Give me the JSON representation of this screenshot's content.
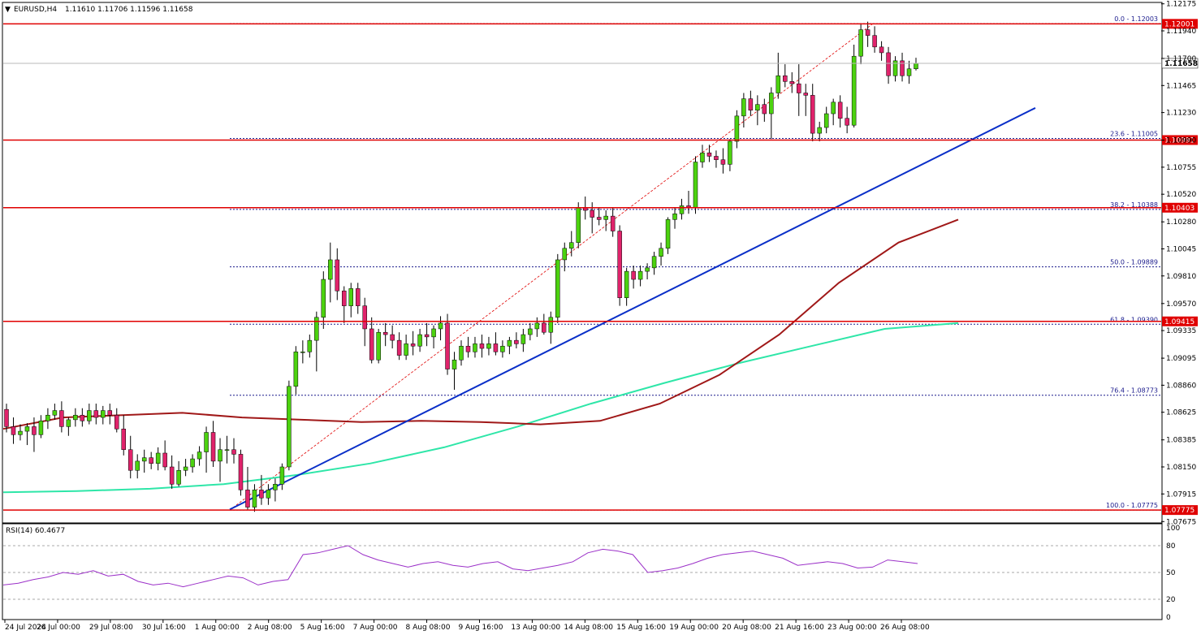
{
  "header": {
    "symbol": "EURUSD,H4",
    "ohlc": "1.11610 1.11706 1.11596 1.11658"
  },
  "rsi_panel": {
    "label": "RSI(14) 60.4677",
    "levels": [
      "100",
      "80",
      "50",
      "20",
      "0"
    ]
  },
  "current_price": "1.11658",
  "hlines": [
    {
      "price": 1.12001,
      "label": "1.12001"
    },
    {
      "price": 1.10991,
      "label": "1.10991"
    },
    {
      "price": 1.10403,
      "label": "1.10403"
    },
    {
      "price": 1.09415,
      "label": "1.09415"
    },
    {
      "price": 1.07775,
      "label": "1.07775"
    }
  ],
  "fib_levels": [
    {
      "price": 1.12003,
      "label": "0.0 - 1.12003"
    },
    {
      "price": 1.11005,
      "label": "23.6 - 1.11005"
    },
    {
      "price": 1.10388,
      "label": "38.2 - 1.10388"
    },
    {
      "price": 1.09889,
      "label": "50.0 - 1.09889"
    },
    {
      "price": 1.0939,
      "label": "61.8 - 1.09390"
    },
    {
      "price": 1.08773,
      "label": "76.4 - 1.08773"
    },
    {
      "price": 1.07775,
      "label": "100.0 - 1.07775"
    }
  ],
  "colors": {
    "bull": "#4cd20f",
    "bear": "#e0236b",
    "wick": "#000000",
    "hline": "#e00000",
    "trendline": "#0a2fc8",
    "ma_slow": "#2ee6a8",
    "ma_mid": "#a01818",
    "rsi": "#9b30c8",
    "fib": "#1a1a8c"
  },
  "chart_data": {
    "type": "candlestick",
    "ylim": [
      1.0767,
      1.1218
    ],
    "y_ticks": [
      "1.12175",
      "1.11940",
      "1.11700",
      "1.11465",
      "1.11230",
      "1.10990",
      "1.10755",
      "1.10520",
      "1.10280",
      "1.10045",
      "1.09810",
      "1.09570",
      "1.09335",
      "1.09095",
      "1.08860",
      "1.08625",
      "1.08385",
      "1.08150",
      "1.07915",
      "1.07675"
    ],
    "x_ticks": [
      "24 Jul 2024",
      "26 Jul 00:00",
      "29 Jul 08:00",
      "30 Jul 16:00",
      "1 Aug 00:00",
      "2 Aug 08:00",
      "5 Aug 16:00",
      "7 Aug 00:00",
      "8 Aug 08:00",
      "9 Aug 16:00",
      "13 Aug 00:00",
      "14 Aug 08:00",
      "15 Aug 16:00",
      "19 Aug 00:00",
      "20 Aug 08:00",
      "21 Aug 16:00",
      "23 Aug 00:00",
      "26 Aug 08:00"
    ],
    "candles_ohlc": [
      [
        1.0865,
        1.087,
        1.0845,
        1.085
      ],
      [
        1.085,
        1.0858,
        1.0835,
        1.0843
      ],
      [
        1.0843,
        1.0852,
        1.0838,
        1.0846
      ],
      [
        1.0846,
        1.0853,
        1.0834,
        1.085
      ],
      [
        1.085,
        1.0858,
        1.0828,
        1.0843
      ],
      [
        1.0843,
        1.086,
        1.084,
        1.0855
      ],
      [
        1.0855,
        1.0866,
        1.0848,
        1.086
      ],
      [
        1.086,
        1.087,
        1.0856,
        1.0864
      ],
      [
        1.0864,
        1.0872,
        1.0845,
        1.085
      ],
      [
        1.085,
        1.0858,
        1.0842,
        1.0856
      ],
      [
        1.0856,
        1.0866,
        1.085,
        1.086
      ],
      [
        1.086,
        1.0866,
        1.085,
        1.0855
      ],
      [
        1.0855,
        1.087,
        1.0852,
        1.0864
      ],
      [
        1.0864,
        1.087,
        1.0852,
        1.0858
      ],
      [
        1.0858,
        1.0868,
        1.0852,
        1.0864
      ],
      [
        1.0864,
        1.087,
        1.0852,
        1.086
      ],
      [
        1.086,
        1.0866,
        1.0845,
        1.0848
      ],
      [
        1.0848,
        1.086,
        1.0825,
        1.083
      ],
      [
        1.083,
        1.0842,
        1.0805,
        1.0812
      ],
      [
        1.0812,
        1.0826,
        1.0805,
        1.082
      ],
      [
        1.082,
        1.083,
        1.081,
        1.0823
      ],
      [
        1.0823,
        1.0828,
        1.0813,
        1.0818
      ],
      [
        1.0818,
        1.0832,
        1.0812,
        1.0827
      ],
      [
        1.0827,
        1.0838,
        1.0812,
        1.0815
      ],
      [
        1.0815,
        1.0825,
        1.0796,
        1.08
      ],
      [
        1.08,
        1.082,
        1.0798,
        1.0812
      ],
      [
        1.0812,
        1.0822,
        1.0807,
        1.0815
      ],
      [
        1.0815,
        1.0826,
        1.081,
        1.0822
      ],
      [
        1.0822,
        1.0833,
        1.0816,
        1.0828
      ],
      [
        1.0828,
        1.085,
        1.081,
        1.0845
      ],
      [
        1.0845,
        1.0855,
        1.0815,
        1.082
      ],
      [
        1.082,
        1.084,
        1.0802,
        1.083
      ],
      [
        1.083,
        1.0842,
        1.0818,
        1.083
      ],
      [
        1.083,
        1.084,
        1.0818,
        1.0826
      ],
      [
        1.0826,
        1.083,
        1.079,
        1.0795
      ],
      [
        1.0795,
        1.0815,
        1.0778,
        1.078
      ],
      [
        1.078,
        1.08,
        1.0776,
        1.0795
      ],
      [
        1.0795,
        1.0808,
        1.0782,
        1.0788
      ],
      [
        1.0788,
        1.08,
        1.0782,
        1.0795
      ],
      [
        1.0795,
        1.0805,
        1.0785,
        1.08
      ],
      [
        1.08,
        1.0818,
        1.0795,
        1.0815
      ],
      [
        1.0815,
        1.089,
        1.0812,
        1.0885
      ],
      [
        1.0885,
        1.092,
        1.0878,
        1.0915
      ],
      [
        1.0915,
        1.0925,
        1.0905,
        1.0915
      ],
      [
        1.0915,
        1.093,
        1.091,
        1.0925
      ],
      [
        1.0925,
        1.095,
        1.0898,
        1.0945
      ],
      [
        1.0945,
        1.0985,
        1.0935,
        1.0978
      ],
      [
        1.0978,
        1.101,
        1.0958,
        1.0995
      ],
      [
        1.0995,
        1.1005,
        1.096,
        1.0968
      ],
      [
        1.0968,
        1.0972,
        1.094,
        1.0955
      ],
      [
        1.0955,
        1.0975,
        1.0945,
        1.097
      ],
      [
        1.097,
        1.0975,
        1.0948,
        1.0955
      ],
      [
        1.0955,
        1.0962,
        1.092,
        1.0935
      ],
      [
        1.0935,
        1.0945,
        1.0905,
        1.0908
      ],
      [
        1.0908,
        1.0935,
        1.0905,
        1.0932
      ],
      [
        1.0932,
        1.094,
        1.092,
        1.093
      ],
      [
        1.093,
        1.0938,
        1.0918,
        1.0925
      ],
      [
        1.0925,
        1.0932,
        1.0908,
        1.0912
      ],
      [
        1.0912,
        1.093,
        1.0908,
        1.0922
      ],
      [
        1.0922,
        1.0933,
        1.0912,
        1.092
      ],
      [
        1.092,
        1.0935,
        1.0915,
        1.093
      ],
      [
        1.093,
        1.094,
        1.092,
        1.0928
      ],
      [
        1.0928,
        1.0938,
        1.0918,
        1.0935
      ],
      [
        1.0935,
        1.0946,
        1.0925,
        1.094
      ],
      [
        1.094,
        1.0948,
        1.0895,
        1.09
      ],
      [
        1.09,
        1.0915,
        1.0882,
        1.0908
      ],
      [
        1.0908,
        1.0925,
        1.0903,
        1.092
      ],
      [
        1.092,
        1.0928,
        1.091,
        1.0915
      ],
      [
        1.0915,
        1.0928,
        1.091,
        1.0922
      ],
      [
        1.0922,
        1.093,
        1.091,
        1.0918
      ],
      [
        1.0918,
        1.0928,
        1.0912,
        1.0922
      ],
      [
        1.0922,
        1.0932,
        1.0912,
        1.0915
      ],
      [
        1.0915,
        1.0925,
        1.091,
        1.092
      ],
      [
        1.092,
        1.0928,
        1.0913,
        1.0925
      ],
      [
        1.0925,
        1.0932,
        1.0918,
        1.0922
      ],
      [
        1.0922,
        1.0935,
        1.0915,
        1.093
      ],
      [
        1.093,
        1.094,
        1.0925,
        1.0935
      ],
      [
        1.0935,
        1.0945,
        1.0928,
        1.094
      ],
      [
        1.094,
        1.0948,
        1.093,
        1.0932
      ],
      [
        1.0932,
        1.095,
        1.0922,
        1.0945
      ],
      [
        1.0945,
        1.1,
        1.094,
        1.0995
      ],
      [
        1.0995,
        1.101,
        1.0985,
        1.1005
      ],
      [
        1.1005,
        1.102,
        1.0998,
        1.101
      ],
      [
        1.101,
        1.1045,
        1.1005,
        1.104
      ],
      [
        1.104,
        1.105,
        1.103,
        1.1038
      ],
      [
        1.1038,
        1.1045,
        1.1018,
        1.1032
      ],
      [
        1.1032,
        1.104,
        1.1025,
        1.103
      ],
      [
        1.103,
        1.1038,
        1.102,
        1.1033
      ],
      [
        1.1033,
        1.104,
        1.1015,
        1.102
      ],
      [
        1.102,
        1.1025,
        1.0955,
        1.0962
      ],
      [
        1.0962,
        1.0988,
        1.0955,
        1.0985
      ],
      [
        1.0985,
        1.099,
        1.097,
        1.0978
      ],
      [
        1.0978,
        1.099,
        1.0972,
        1.0985
      ],
      [
        1.0985,
        1.0992,
        1.0978,
        1.0988
      ],
      [
        1.0988,
        1.1002,
        1.0982,
        1.0998
      ],
      [
        1.0998,
        1.101,
        1.099,
        1.1005
      ],
      [
        1.1005,
        1.1032,
        1.1,
        1.103
      ],
      [
        1.103,
        1.104,
        1.1022,
        1.1035
      ],
      [
        1.1035,
        1.1048,
        1.103,
        1.1042
      ],
      [
        1.1042,
        1.1055,
        1.1035,
        1.104
      ],
      [
        1.104,
        1.1085,
        1.1035,
        1.108
      ],
      [
        1.108,
        1.1095,
        1.1075,
        1.1088
      ],
      [
        1.1088,
        1.1095,
        1.108,
        1.1085
      ],
      [
        1.1085,
        1.109,
        1.1075,
        1.1082
      ],
      [
        1.1082,
        1.1092,
        1.107,
        1.1078
      ],
      [
        1.1078,
        1.11,
        1.1072,
        1.1098
      ],
      [
        1.1098,
        1.1125,
        1.1092,
        1.112
      ],
      [
        1.112,
        1.114,
        1.111,
        1.1135
      ],
      [
        1.1135,
        1.1142,
        1.112,
        1.1125
      ],
      [
        1.1125,
        1.1138,
        1.1112,
        1.113
      ],
      [
        1.113,
        1.1135,
        1.1115,
        1.1122
      ],
      [
        1.1122,
        1.1145,
        1.11,
        1.114
      ],
      [
        1.114,
        1.1175,
        1.1135,
        1.1155
      ],
      [
        1.1155,
        1.1165,
        1.1145,
        1.115
      ],
      [
        1.115,
        1.1158,
        1.114,
        1.1148
      ],
      [
        1.1148,
        1.1165,
        1.112,
        1.114
      ],
      [
        1.114,
        1.1148,
        1.112,
        1.1138
      ],
      [
        1.1138,
        1.1148,
        1.1098,
        1.1105
      ],
      [
        1.1105,
        1.1115,
        1.1098,
        1.111
      ],
      [
        1.111,
        1.1128,
        1.1105,
        1.1122
      ],
      [
        1.1122,
        1.1135,
        1.1112,
        1.1132
      ],
      [
        1.1132,
        1.1138,
        1.111,
        1.1118
      ],
      [
        1.1118,
        1.1128,
        1.1105,
        1.1112
      ],
      [
        1.1112,
        1.1182,
        1.111,
        1.1172
      ],
      [
        1.1172,
        1.12,
        1.1165,
        1.1195
      ],
      [
        1.1195,
        1.1202,
        1.118,
        1.119
      ],
      [
        1.119,
        1.1198,
        1.1175,
        1.118
      ],
      [
        1.118,
        1.1185,
        1.1168,
        1.1175
      ],
      [
        1.1175,
        1.118,
        1.1148,
        1.1155
      ],
      [
        1.1155,
        1.1172,
        1.115,
        1.1168
      ],
      [
        1.1168,
        1.1175,
        1.115,
        1.1155
      ],
      [
        1.1155,
        1.1168,
        1.1148,
        1.1161
      ],
      [
        1.1161,
        1.11706,
        1.11596,
        1.11658
      ]
    ],
    "ma_slow": [
      1.0793,
      1.0794,
      1.0796,
      1.08,
      1.0808,
      1.0818,
      1.0832,
      1.085,
      1.087,
      1.0888,
      1.0905,
      1.092,
      1.0935,
      1.094
    ],
    "ma_mid": [
      1.0848,
      1.0858,
      1.086,
      1.0862,
      1.0858,
      1.0856,
      1.0854,
      1.0855,
      1.0854,
      1.0852,
      1.0855,
      1.087,
      1.0895,
      1.093,
      1.0975,
      1.101,
      1.103
    ],
    "trendline": [
      [
        1.0778,
        1.0778
      ],
      [
        1.1127,
        1.1127
      ]
    ],
    "rsi_values": [
      36,
      38,
      42,
      45,
      50,
      48,
      52,
      46,
      48,
      40,
      36,
      38,
      34,
      38,
      42,
      46,
      44,
      36,
      40,
      42,
      70,
      72,
      76,
      80,
      70,
      64,
      60,
      56,
      60,
      62,
      58,
      56,
      60,
      62,
      54,
      52,
      55,
      58,
      62,
      72,
      76,
      74,
      70,
      50,
      52,
      55,
      60,
      66,
      70,
      72,
      74,
      70,
      66,
      58,
      60,
      62,
      60,
      55,
      56,
      64,
      62,
      60
    ]
  }
}
